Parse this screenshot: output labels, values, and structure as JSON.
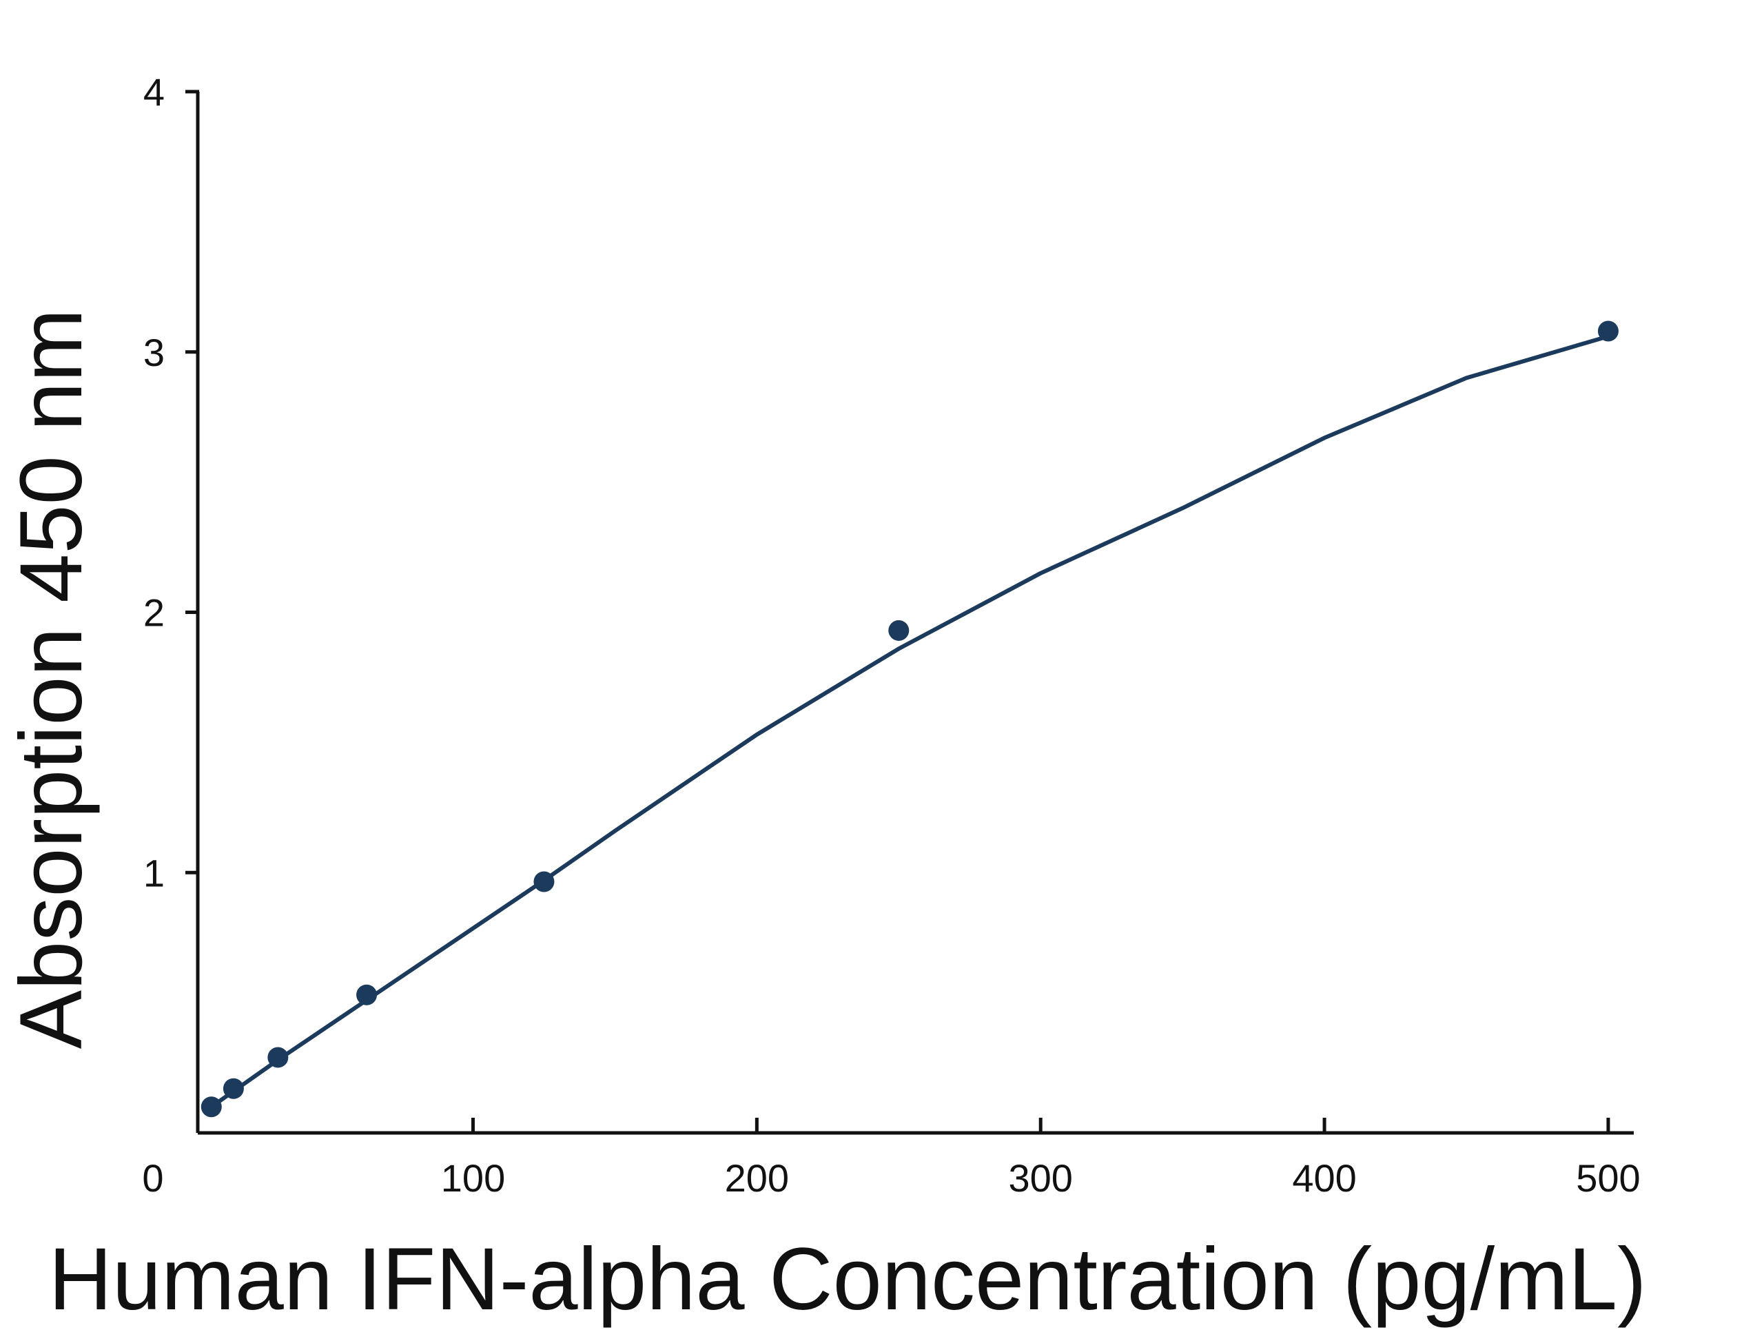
{
  "chart_data": {
    "type": "scatter",
    "x_label": "Human IFN-alpha Concentration (pg/mL)",
    "y_label": "Absorption 450 nm",
    "series": [
      {
        "color": "#1b3a5c",
        "x": [
          7.8,
          15.6,
          31.25,
          62.5,
          125,
          250,
          500
        ],
        "values": [
          0.1,
          0.17,
          0.29,
          0.53,
          0.965,
          1.93,
          3.08
        ]
      }
    ],
    "fit": {
      "color": "#1b3a5c",
      "x": [
        7.8,
        31.25,
        62.5,
        125,
        150,
        200,
        250,
        300,
        350,
        400,
        450,
        500
      ],
      "values": [
        0.1,
        0.28,
        0.51,
        0.97,
        1.16,
        1.53,
        1.86,
        2.15,
        2.4,
        2.67,
        2.9,
        3.06
      ]
    },
    "xlim": [
      3,
      509
    ],
    "ylim": [
      0,
      4
    ],
    "xticks": [
      0,
      100,
      200,
      300,
      400,
      500
    ],
    "yticks": [
      1,
      2,
      3,
      4
    ]
  }
}
